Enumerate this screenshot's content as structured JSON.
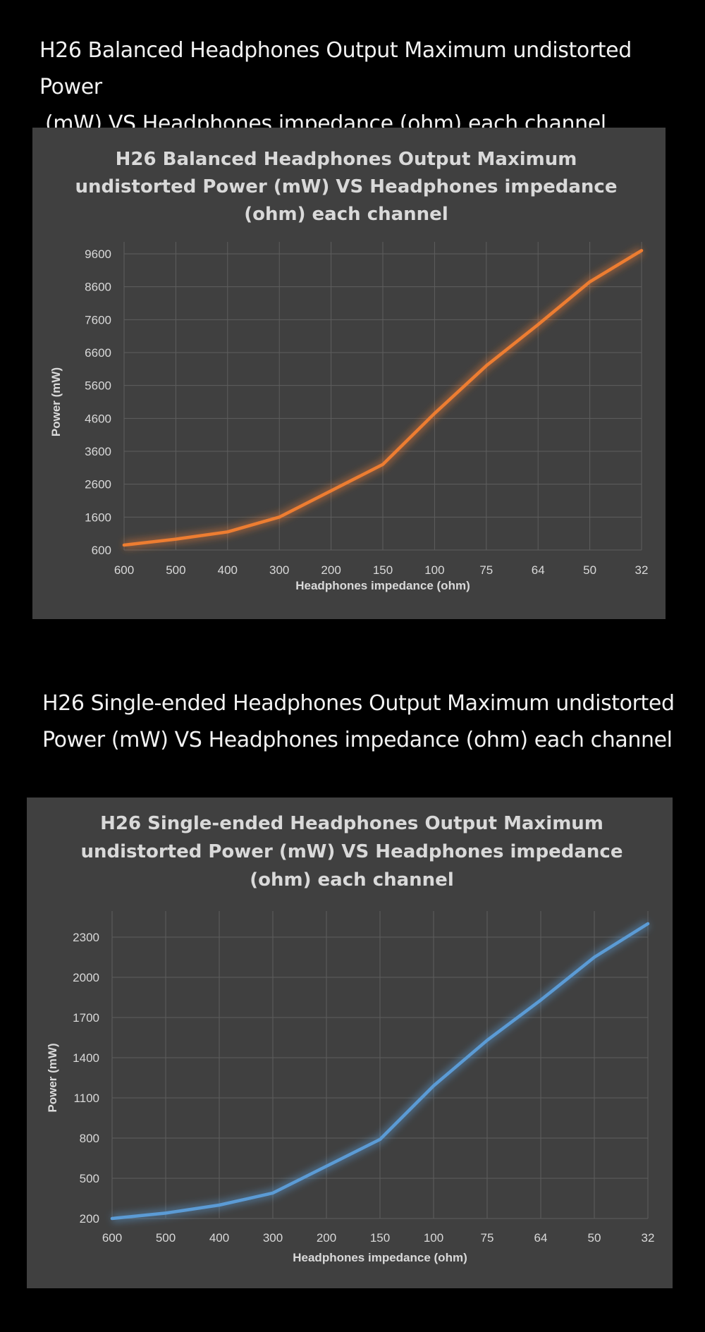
{
  "headings": {
    "balanced": [
      "H26 Balanced Headphones Output Maximum undistorted Power",
      "(mW) VS Headphones impedance (ohm) each channel"
    ],
    "single": [
      "H26 Single-ended Headphones Output Maximum undistorted",
      "Power (mW) VS Headphones impedance (ohm) each channel"
    ]
  },
  "chart_data": [
    {
      "type": "line",
      "title": [
        "H26 Balanced Headphones Output Maximum",
        "undistorted Power (mW) VS Headphones impedance",
        "(ohm) each channel"
      ],
      "xlabel": "Headphones impedance (ohm)",
      "ylabel": "Power (mW)",
      "categories": [
        "600",
        "500",
        "400",
        "300",
        "200",
        "150",
        "100",
        "75",
        "64",
        "50",
        "32"
      ],
      "yticks": [
        "600",
        "1600",
        "2600",
        "3600",
        "4600",
        "5600",
        "6600",
        "7600",
        "8600",
        "9600"
      ],
      "ylim": [
        600,
        9600
      ],
      "grid": true,
      "legend": "none",
      "series": [
        {
          "values": [
            750,
            930,
            1150,
            1600,
            2400,
            3200,
            4750,
            6200,
            7450,
            8750,
            9700
          ],
          "color": "#ed7d31"
        }
      ]
    },
    {
      "type": "line",
      "title": [
        "H26 Single-ended Headphones Output Maximum",
        "undistorted Power (mW) VS Headphones impedance",
        "(ohm) each channel"
      ],
      "xlabel": "Headphones impedance (ohm)",
      "ylabel": "Power (mW)",
      "categories": [
        "600",
        "500",
        "400",
        "300",
        "200",
        "150",
        "100",
        "75",
        "64",
        "50",
        "32"
      ],
      "yticks": [
        "200",
        "500",
        "800",
        "1100",
        "1400",
        "1700",
        "2000",
        "2300"
      ],
      "ylim": [
        200,
        2300
      ],
      "grid": true,
      "legend": "none",
      "series": [
        {
          "values": [
            200,
            240,
            300,
            390,
            590,
            790,
            1190,
            1530,
            1830,
            2150,
            2400
          ],
          "color": "#5b9bd5"
        }
      ]
    }
  ]
}
